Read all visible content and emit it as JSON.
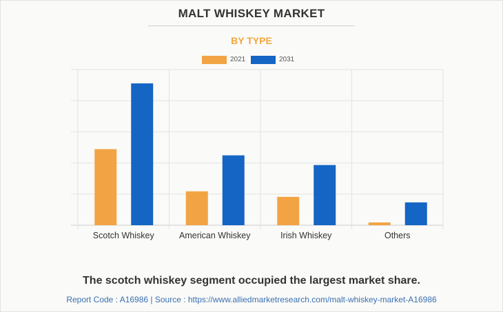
{
  "header": {
    "title": "MALT WHISKEY MARKET",
    "subtitle": "BY TYPE"
  },
  "colors": {
    "series_2021": "#f2a444",
    "series_2031": "#1565c4",
    "subtitle": "#f2a53f",
    "source_text": "#3a6fb0"
  },
  "chart_data": {
    "type": "bar",
    "title": "MALT WHISKEY MARKET",
    "subtitle": "BY TYPE",
    "categories": [
      "Scotch Whiskey",
      "American Whiskey",
      "Irish Whiskey",
      "Others"
    ],
    "series": [
      {
        "name": "2021",
        "values": [
          110,
          49,
          41,
          4
        ]
      },
      {
        "name": "2031",
        "values": [
          205,
          101,
          87,
          33
        ]
      }
    ],
    "ylim": [
      0,
      225
    ],
    "grid": true,
    "legend_position": "top-center",
    "xlabel": "",
    "ylabel": ""
  },
  "footer": {
    "caption": "The scotch whiskey segment occupied the largest market share.",
    "source": "Report Code : A16986  |  Source : https://www.alliedmarketresearch.com/malt-whiskey-market-A16986"
  }
}
